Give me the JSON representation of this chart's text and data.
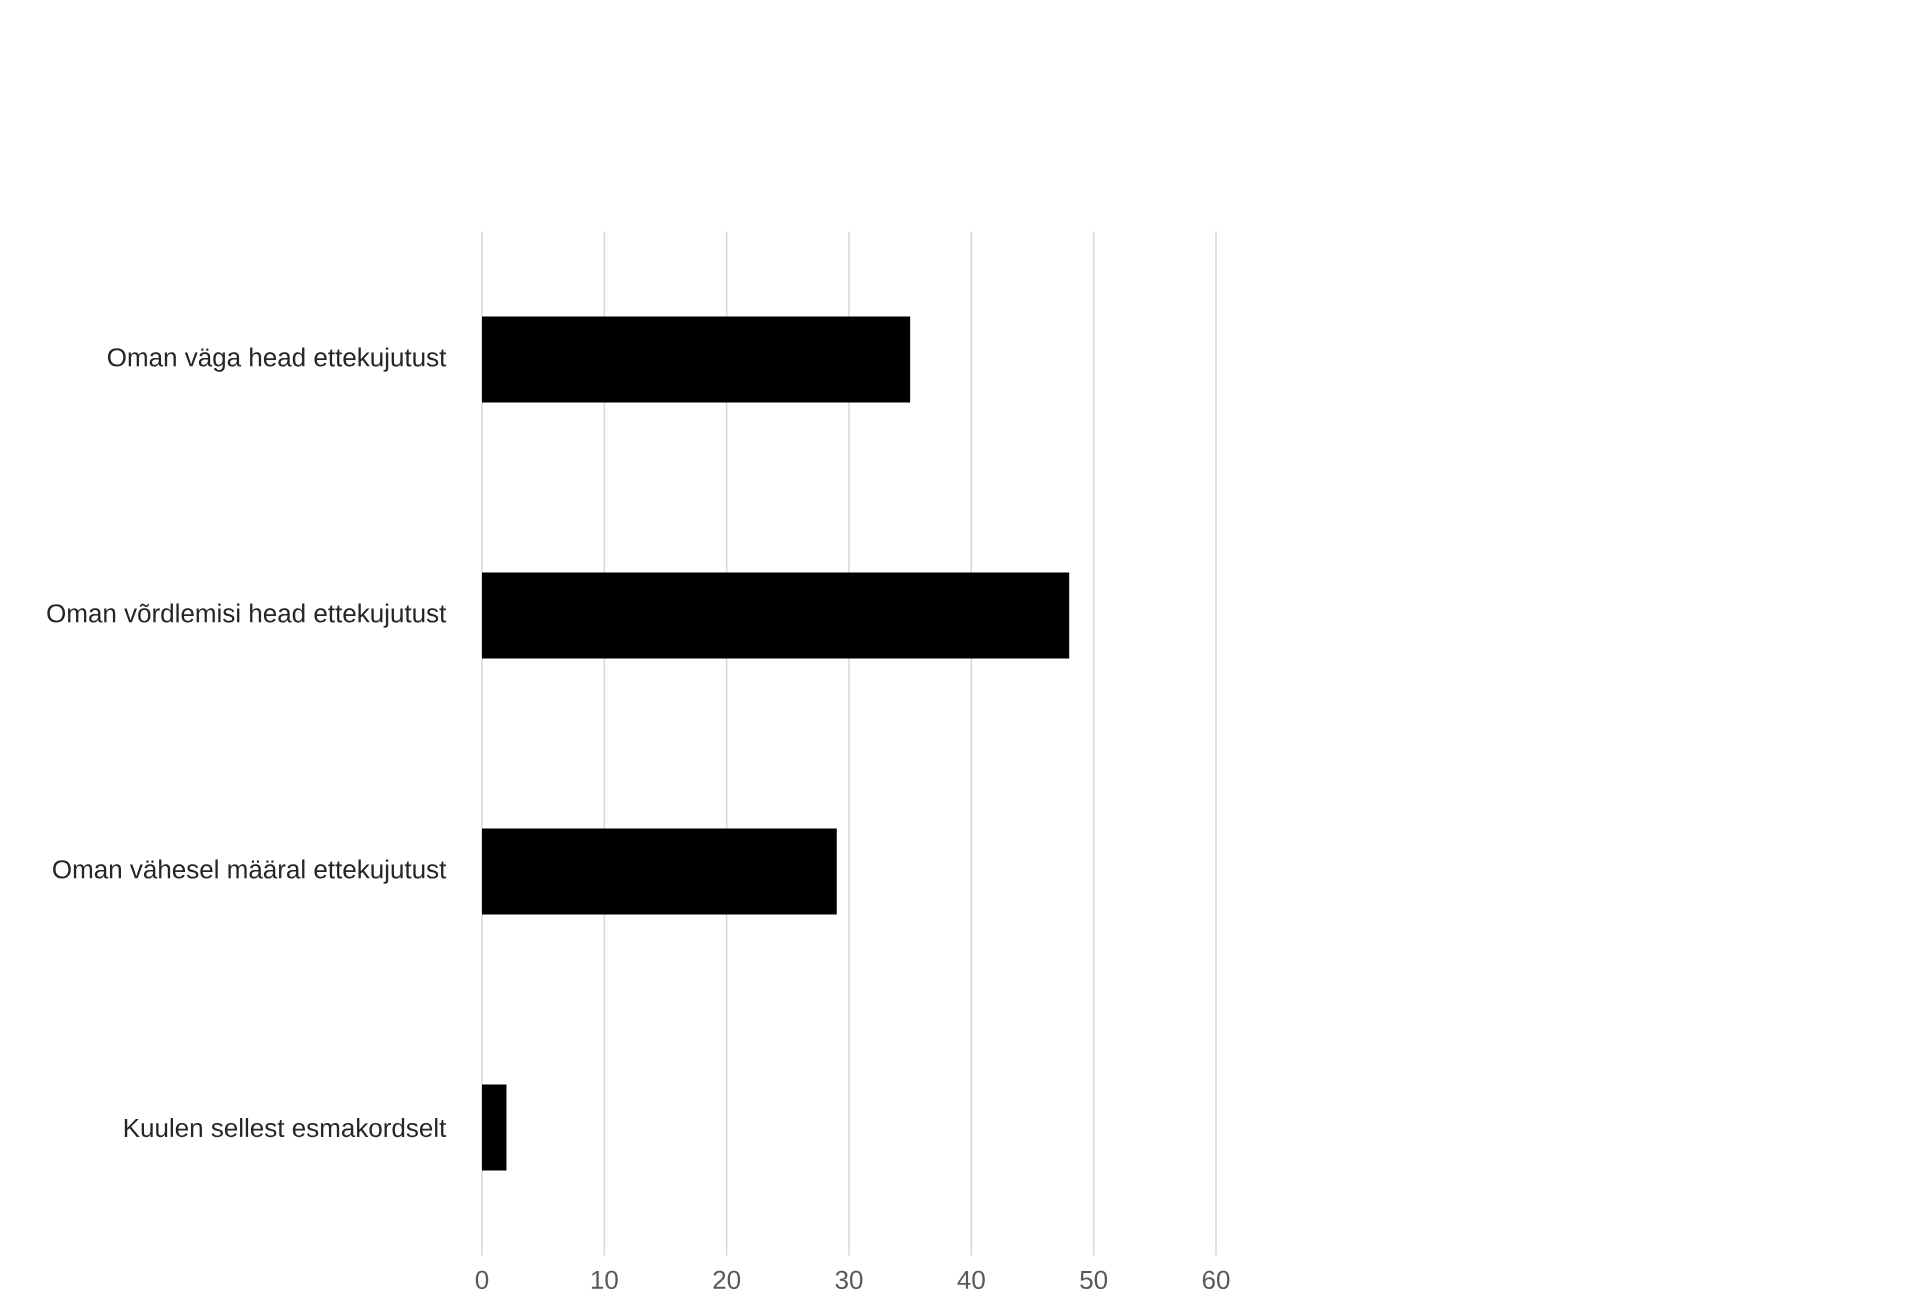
{
  "chart_data": {
    "type": "bar",
    "orientation": "horizontal",
    "categories": [
      "Oman väga head ettekujutust",
      "Oman võrdlemisi head ettekujutust",
      "Oman vähesel määral ettekujutust",
      "Kuulen sellest esmakordselt"
    ],
    "values": [
      35,
      48,
      29,
      2
    ],
    "color": "#000000",
    "xlim": [
      0,
      60
    ],
    "xticks": [
      0,
      10,
      20,
      30,
      40,
      50,
      60
    ],
    "grid": "x"
  }
}
